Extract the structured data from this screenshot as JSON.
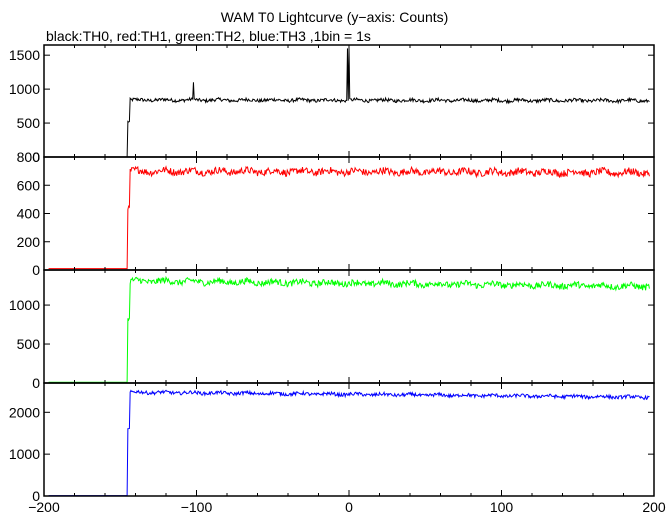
{
  "chart_data": {
    "type": "line",
    "title": "WAM T0 Lightcurve (y−axis: Counts)",
    "subtitle": "black:TH0, red:TH1, green:TH2, blue:TH3 ,1bin = 1s",
    "xlim": [
      -200,
      200
    ],
    "x_ticks": [
      -200,
      -100,
      0,
      100,
      200
    ],
    "x_tick_labels": [
      "−200",
      "−100",
      "0",
      "100",
      "200"
    ],
    "grid": false,
    "panels": [
      {
        "name": "TH0",
        "color": "#000000",
        "ylim": [
          0,
          1650
        ],
        "y_ticks": [
          0,
          500,
          1000,
          1500
        ],
        "background": 0,
        "pre_onset": 0,
        "onset_x": -145,
        "step_level": 520,
        "plateau_start": 840,
        "plateau_end": 830,
        "noise": 25,
        "spikes": [
          {
            "x": -102,
            "value": 1100
          },
          {
            "x": -1,
            "value": 1600
          },
          {
            "x": 0,
            "value": 1620
          }
        ]
      },
      {
        "name": "TH1",
        "color": "#ff0000",
        "ylim": [
          0,
          800
        ],
        "y_ticks": [
          0,
          200,
          400,
          600,
          800
        ],
        "background": 0,
        "pre_onset": 10,
        "onset_x": -145,
        "step_level": 440,
        "plateau_start": 700,
        "plateau_end": 690,
        "noise": 25,
        "spikes": []
      },
      {
        "name": "TH2",
        "color": "#00ff00",
        "ylim": [
          0,
          1450
        ],
        "y_ticks": [
          0,
          500,
          1000
        ],
        "background": 0,
        "pre_onset": 10,
        "onset_x": -145,
        "step_level": 820,
        "plateau_start": 1310,
        "plateau_end": 1240,
        "noise": 40,
        "spikes": []
      },
      {
        "name": "TH3",
        "color": "#0000ff",
        "ylim": [
          0,
          2700
        ],
        "y_ticks": [
          0,
          1000,
          2000
        ],
        "background": 0,
        "pre_onset": 10,
        "onset_x": -145,
        "step_level": 1600,
        "plateau_start": 2480,
        "plateau_end": 2360,
        "noise": 40,
        "spikes": []
      }
    ]
  }
}
